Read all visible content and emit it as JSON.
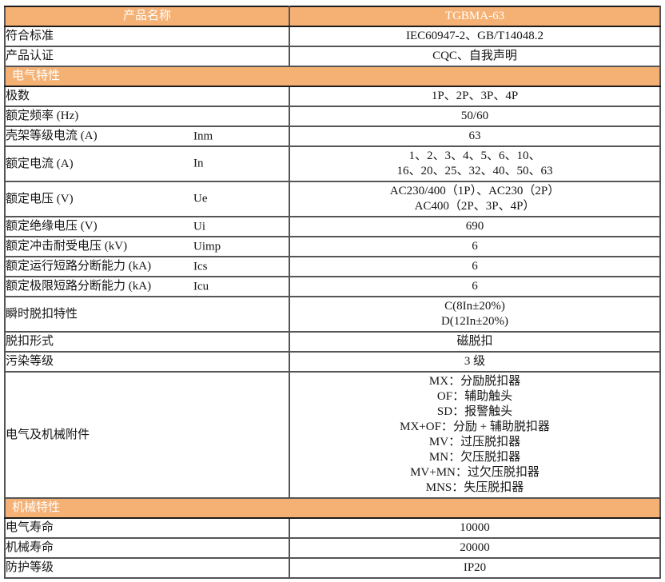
{
  "colors": {
    "accent_orange": "#F5B174",
    "header_text_color": "#FFFFFF",
    "body_text_color": "#151515",
    "inner_border_color": "#555555",
    "outer_border_color": "#1C1C1C"
  },
  "table": {
    "rows": [
      {
        "type": "header",
        "label": "产品名称",
        "value_lines": [
          "TGBMA-63"
        ]
      },
      {
        "type": "data",
        "label": "符合标准",
        "symbol": "",
        "value_lines": [
          "IEC60947-2、GB/T14048.2"
        ]
      },
      {
        "type": "data",
        "label": "产品认证",
        "symbol": "",
        "value_lines": [
          "CQC、自我声明"
        ]
      },
      {
        "type": "section",
        "title": "电气特性"
      },
      {
        "type": "data",
        "label": "极数",
        "symbol": "",
        "value_lines": [
          "1P、2P、3P、4P"
        ]
      },
      {
        "type": "data",
        "label": "额定频率 (Hz)",
        "symbol": "",
        "value_lines": [
          "50/60"
        ]
      },
      {
        "type": "data",
        "label": "壳架等级电流 (A)",
        "symbol": "Inm",
        "value_lines": [
          "63"
        ]
      },
      {
        "type": "data",
        "label": "额定电流 (A)",
        "symbol": "In",
        "value_lines": [
          "1、2、3、4、5、6、10、",
          "16、20、25、32、40、50、63"
        ]
      },
      {
        "type": "data",
        "label": "额定电压 (V)",
        "symbol": "Ue",
        "value_lines": [
          "AC230/400（1P）、AC230（2P）",
          "AC400（2P、3P、4P）"
        ]
      },
      {
        "type": "data",
        "label": "额定绝缘电压 (V)",
        "symbol": "Ui",
        "value_lines": [
          "690"
        ]
      },
      {
        "type": "data",
        "label": "额定冲击耐受电压 (kV)",
        "symbol": "Uimp",
        "value_lines": [
          "6"
        ]
      },
      {
        "type": "data",
        "label": "额定运行短路分断能力 (kA)",
        "symbol": "Ics",
        "value_lines": [
          "6"
        ]
      },
      {
        "type": "data",
        "label": "额定极限短路分断能力 (kA)",
        "symbol": "Icu",
        "value_lines": [
          "6"
        ]
      },
      {
        "type": "data",
        "label": "瞬时脱扣特性",
        "symbol": "",
        "value_lines": [
          "C(8In±20%)",
          "D(12In±20%)"
        ]
      },
      {
        "type": "data",
        "label": "脱扣形式",
        "symbol": "",
        "value_lines": [
          "磁脱扣"
        ]
      },
      {
        "type": "data",
        "label": "污染等级",
        "symbol": "",
        "value_lines": [
          "3 级"
        ]
      },
      {
        "type": "data",
        "label": "电气及机械附件",
        "symbol": "",
        "value_lines": [
          "MX：分励脱扣器",
          "OF：辅助触头",
          "SD：报警触头",
          "MX+OF：分励 + 辅助脱扣器",
          "MV：过压脱扣器",
          "MN：欠压脱扣器",
          "MV+MN：过欠压脱扣器",
          "MNS：失压脱扣器"
        ]
      },
      {
        "type": "section",
        "title": "机械特性"
      },
      {
        "type": "data",
        "label": "电气寿命",
        "symbol": "",
        "value_lines": [
          "10000"
        ]
      },
      {
        "type": "data",
        "label": "机械寿命",
        "symbol": "",
        "value_lines": [
          "20000"
        ]
      },
      {
        "type": "data",
        "label": "防护等级",
        "symbol": "",
        "value_lines": [
          "IP20"
        ]
      }
    ]
  }
}
